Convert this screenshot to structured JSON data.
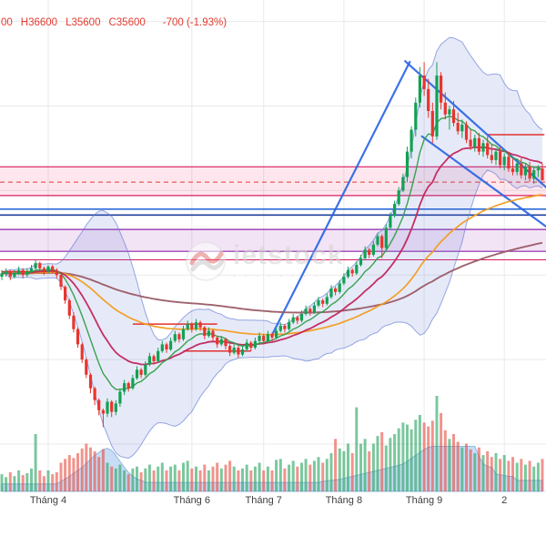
{
  "legend": {
    "open_partial": "00",
    "high": "H36600",
    "low": "L35600",
    "close": "C35600",
    "change": "-700 (-1.93%)"
  },
  "watermark": {
    "text": "ietstock",
    "dots": "· · · · · · · ·"
  },
  "colors": {
    "up": "#12a152",
    "down": "#e7352d",
    "vol_up": "#23a45d",
    "vol_down": "#e64c41",
    "bb_fill": "rgba(99,122,214,0.16)",
    "bb_edge": "#637ad6",
    "flow_fill": "#8fbcec",
    "flow_edge": "#6ea3d8",
    "trend": "#2763e4",
    "red_seg": "#e03131",
    "grid": "#e9e9e9",
    "axis_text": "#3f3f3f",
    "legend_text": "#e23b30"
  },
  "chart_data": {
    "type": "candlestick",
    "title": "",
    "ylim": [
      17200,
      46270
    ],
    "x_axis": {
      "labels": [
        {
          "label": "Tháng 4",
          "bar": 11
        },
        {
          "label": "Tháng 6",
          "bar": 45
        },
        {
          "label": "Tháng 7",
          "bar": 62
        },
        {
          "label": "Tháng 8",
          "bar": 81
        },
        {
          "label": "Tháng 9",
          "bar": 100
        },
        {
          "label": "2",
          "bar": 119
        }
      ]
    },
    "candles": [
      [
        29900,
        30300,
        29700,
        30100
      ],
      [
        30100,
        30400,
        29900,
        30200
      ],
      [
        30200,
        30300,
        29700,
        29900
      ],
      [
        29900,
        30300,
        29800,
        30100
      ],
      [
        30100,
        30500,
        30000,
        30300
      ],
      [
        30300,
        30400,
        29800,
        30000
      ],
      [
        30000,
        30400,
        29900,
        30200
      ],
      [
        30200,
        30600,
        30100,
        30400
      ],
      [
        30400,
        30900,
        30300,
        30700
      ],
      [
        30700,
        30800,
        30200,
        30400
      ],
      [
        30400,
        30500,
        30000,
        30200
      ],
      [
        30200,
        30600,
        30100,
        30500
      ],
      [
        30500,
        30600,
        30100,
        30300
      ],
      [
        30300,
        30400,
        29800,
        30000
      ],
      [
        30000,
        30100,
        29100,
        29300
      ],
      [
        29300,
        29400,
        28300,
        28500
      ],
      [
        28500,
        28600,
        27400,
        27600
      ],
      [
        27600,
        27800,
        26600,
        26800
      ],
      [
        26800,
        26900,
        25700,
        25900
      ],
      [
        25900,
        26000,
        24800,
        25000
      ],
      [
        25000,
        25100,
        23900,
        24100
      ],
      [
        24100,
        24200,
        23000,
        23300
      ],
      [
        23300,
        23400,
        22300,
        22600
      ],
      [
        22600,
        22700,
        21700,
        22000
      ],
      [
        22000,
        22100,
        21000,
        21800
      ],
      [
        21800,
        22700,
        21600,
        22500
      ],
      [
        22500,
        22600,
        21600,
        21900
      ],
      [
        21900,
        22600,
        21700,
        22400
      ],
      [
        22400,
        23300,
        22200,
        23100
      ],
      [
        23100,
        23800,
        22900,
        23600
      ],
      [
        23600,
        23700,
        23100,
        23300
      ],
      [
        23300,
        24100,
        23200,
        23900
      ],
      [
        23900,
        24600,
        23800,
        24400
      ],
      [
        24400,
        24500,
        23900,
        24100
      ],
      [
        24100,
        24900,
        24000,
        24700
      ],
      [
        24700,
        25400,
        24600,
        25200
      ],
      [
        25200,
        25300,
        24700,
        24900
      ],
      [
        24900,
        25700,
        24800,
        25500
      ],
      [
        25500,
        26100,
        25400,
        25900
      ],
      [
        25900,
        26000,
        25400,
        25600
      ],
      [
        25600,
        26300,
        25500,
        26100
      ],
      [
        26100,
        26700,
        26000,
        26500
      ],
      [
        26500,
        26600,
        26000,
        26200
      ],
      [
        26200,
        27000,
        26100,
        26800
      ],
      [
        26800,
        27300,
        26700,
        27100
      ],
      [
        27100,
        27200,
        26600,
        26800
      ],
      [
        26800,
        27400,
        26700,
        27200
      ],
      [
        27200,
        27300,
        26700,
        26900
      ],
      [
        26900,
        27000,
        26200,
        26400
      ],
      [
        26400,
        26900,
        26300,
        26700
      ],
      [
        26700,
        26800,
        26100,
        26300
      ],
      [
        26300,
        26400,
        25700,
        25900
      ],
      [
        25900,
        26400,
        25800,
        26200
      ],
      [
        26200,
        26300,
        25600,
        25800
      ],
      [
        25800,
        25900,
        25200,
        25400
      ],
      [
        25400,
        25900,
        25300,
        25700
      ],
      [
        25700,
        25800,
        25100,
        25300
      ],
      [
        25300,
        25800,
        25200,
        25600
      ],
      [
        25600,
        26200,
        25500,
        26000
      ],
      [
        26000,
        26100,
        25500,
        25700
      ],
      [
        25700,
        26300,
        25600,
        26100
      ],
      [
        26100,
        26600,
        26000,
        26400
      ],
      [
        26400,
        26500,
        25900,
        26100
      ],
      [
        26100,
        26700,
        26000,
        26500
      ],
      [
        26500,
        26600,
        26100,
        26300
      ],
      [
        26300,
        26900,
        26200,
        26700
      ],
      [
        26700,
        27200,
        26600,
        27000
      ],
      [
        27000,
        27100,
        26600,
        26800
      ],
      [
        26800,
        27400,
        26700,
        27200
      ],
      [
        27200,
        27700,
        27100,
        27500
      ],
      [
        27500,
        27600,
        27100,
        27300
      ],
      [
        27300,
        27900,
        27200,
        27700
      ],
      [
        27700,
        28200,
        27600,
        28000
      ],
      [
        28000,
        28100,
        27600,
        27800
      ],
      [
        27800,
        28400,
        27700,
        28200
      ],
      [
        28200,
        28700,
        28100,
        28500
      ],
      [
        28500,
        28600,
        28100,
        28300
      ],
      [
        28300,
        28900,
        28200,
        28700
      ],
      [
        28700,
        29400,
        28600,
        29200
      ],
      [
        29200,
        29300,
        28800,
        29000
      ],
      [
        29000,
        29700,
        28900,
        29500
      ],
      [
        29500,
        30100,
        29400,
        29900
      ],
      [
        29900,
        30500,
        29800,
        30300
      ],
      [
        30300,
        30400,
        29900,
        30100
      ],
      [
        30100,
        30800,
        30000,
        30600
      ],
      [
        30600,
        31200,
        30500,
        31000
      ],
      [
        31000,
        31700,
        30900,
        31500
      ],
      [
        31500,
        31600,
        31000,
        31200
      ],
      [
        31200,
        32000,
        31100,
        31800
      ],
      [
        31800,
        32500,
        31700,
        32300
      ],
      [
        32300,
        32400,
        31000,
        31600
      ],
      [
        31600,
        33000,
        31500,
        32800
      ],
      [
        32800,
        33700,
        32700,
        33500
      ],
      [
        33500,
        34400,
        33400,
        34200
      ],
      [
        34200,
        35200,
        34100,
        35000
      ],
      [
        35000,
        36000,
        34900,
        35800
      ],
      [
        35800,
        37600,
        35500,
        37300
      ],
      [
        37300,
        38800,
        36900,
        38600
      ],
      [
        38600,
        40500,
        38200,
        40200
      ],
      [
        40200,
        42300,
        39900,
        41800
      ],
      [
        41800,
        42600,
        40600,
        41000
      ],
      [
        41000,
        41600,
        39300,
        39700
      ],
      [
        39700,
        40200,
        37800,
        38200
      ],
      [
        38200,
        42600,
        38000,
        41800
      ],
      [
        41800,
        42000,
        39800,
        40200
      ],
      [
        40200,
        40800,
        39200,
        39500
      ],
      [
        39500,
        40000,
        38600,
        39800
      ],
      [
        39800,
        40300,
        38800,
        39000
      ],
      [
        39000,
        39600,
        38300,
        38500
      ],
      [
        38500,
        39200,
        38100,
        38900
      ],
      [
        38900,
        39100,
        37800,
        38000
      ],
      [
        38000,
        38600,
        37400,
        37600
      ],
      [
        37600,
        38300,
        37300,
        38100
      ],
      [
        38100,
        38400,
        37100,
        37300
      ],
      [
        37300,
        38000,
        37000,
        37800
      ],
      [
        37800,
        38200,
        36900,
        37100
      ],
      [
        37100,
        37700,
        36600,
        36800
      ],
      [
        36800,
        37500,
        36500,
        37300
      ],
      [
        37300,
        37600,
        36300,
        36500
      ],
      [
        36500,
        37200,
        36200,
        37000
      ],
      [
        37000,
        37300,
        36100,
        36300
      ],
      [
        36300,
        36900,
        35900,
        36100
      ],
      [
        36100,
        36800,
        35900,
        36600
      ],
      [
        36600,
        36900,
        35700,
        35900
      ],
      [
        35900,
        36600,
        35600,
        36400
      ],
      [
        36400,
        36700,
        35500,
        35700
      ],
      [
        35700,
        36400,
        35400,
        36200
      ],
      [
        36200,
        36500,
        35800,
        36300
      ],
      [
        36300,
        36600,
        35600,
        35600
      ]
    ],
    "volume": [
      0.18,
      0.15,
      0.2,
      0.16,
      0.22,
      0.17,
      0.19,
      0.24,
      0.6,
      0.22,
      0.16,
      0.22,
      0.18,
      0.2,
      0.3,
      0.34,
      0.38,
      0.35,
      0.4,
      0.45,
      0.5,
      0.46,
      0.42,
      0.36,
      0.44,
      0.3,
      0.26,
      0.24,
      0.28,
      0.22,
      0.18,
      0.24,
      0.26,
      0.2,
      0.24,
      0.28,
      0.22,
      0.26,
      0.3,
      0.22,
      0.26,
      0.28,
      0.22,
      0.3,
      0.32,
      0.24,
      0.26,
      0.22,
      0.28,
      0.22,
      0.26,
      0.3,
      0.24,
      0.28,
      0.32,
      0.26,
      0.22,
      0.24,
      0.28,
      0.22,
      0.26,
      0.3,
      0.22,
      0.26,
      0.22,
      0.33,
      0.34,
      0.24,
      0.28,
      0.32,
      0.26,
      0.3,
      0.34,
      0.28,
      0.32,
      0.36,
      0.3,
      0.34,
      0.4,
      0.55,
      0.45,
      0.42,
      0.5,
      0.4,
      0.88,
      0.5,
      0.55,
      0.42,
      0.5,
      0.58,
      0.62,
      0.48,
      0.56,
      0.6,
      0.66,
      0.72,
      0.7,
      0.65,
      0.75,
      0.8,
      0.72,
      0.68,
      0.74,
      1.0,
      0.82,
      0.64,
      0.55,
      0.6,
      0.52,
      0.46,
      0.5,
      0.44,
      0.4,
      0.46,
      0.38,
      0.42,
      0.36,
      0.4,
      0.34,
      0.38,
      0.32,
      0.36,
      0.3,
      0.34,
      0.28,
      0.32,
      0.26,
      0.3,
      0.34
    ],
    "flow_area": [
      0.15,
      0.15,
      0.15,
      0.15,
      0.15,
      0.15,
      0.15,
      0.15,
      0.15,
      0.15,
      0.15,
      0.15,
      0.15,
      0.15,
      0.2,
      0.25,
      0.3,
      0.36,
      0.42,
      0.48,
      0.56,
      0.64,
      0.72,
      0.78,
      0.84,
      0.86,
      0.82,
      0.72,
      0.6,
      0.48,
      0.38,
      0.3,
      0.25,
      0.22,
      0.18,
      0.18,
      0.18,
      0.18,
      0.18,
      0.18,
      0.18,
      0.18,
      0.18,
      0.18,
      0.18,
      0.18,
      0.18,
      0.18,
      0.18,
      0.18,
      0.18,
      0.18,
      0.18,
      0.18,
      0.18,
      0.18,
      0.18,
      0.18,
      0.18,
      0.18,
      0.18,
      0.18,
      0.18,
      0.18,
      0.18,
      0.18,
      0.18,
      0.18,
      0.18,
      0.18,
      0.18,
      0.18,
      0.18,
      0.18,
      0.18,
      0.18,
      0.2,
      0.21,
      0.22,
      0.23,
      0.24,
      0.26,
      0.28,
      0.3,
      0.32,
      0.34,
      0.36,
      0.38,
      0.4,
      0.42,
      0.44,
      0.46,
      0.48,
      0.5,
      0.52,
      0.55,
      0.6,
      0.66,
      0.72,
      0.78,
      0.84,
      0.88,
      0.9,
      0.9,
      0.9,
      0.9,
      0.9,
      0.9,
      0.9,
      0.9,
      0.9,
      0.9,
      0.9,
      0.7,
      0.55,
      0.5,
      0.48,
      0.35,
      0.33,
      0.32,
      0.3,
      0.3,
      0.22,
      0.22,
      0.22,
      0.22,
      0.22,
      0.22,
      0.22
    ],
    "indicators": {
      "bollinger": {
        "period": 20,
        "mult": 2
      },
      "emas": [
        {
          "period": 150,
          "color": "#9a5b66",
          "width": 1.9
        },
        {
          "period": 60,
          "color": "#f29b1d",
          "width": 1.7
        },
        {
          "period": 21,
          "color": "#c2255c",
          "width": 1.8
        },
        {
          "period": 9,
          "color": "#2f9e44",
          "width": 1.4
        }
      ]
    },
    "overlays": {
      "gridlines": [
        45000,
        40000,
        35000,
        30000,
        25000,
        20000
      ],
      "zones": [
        {
          "top": 36400,
          "bottom": 34700,
          "fill": "rgba(236,64,122,0.13)",
          "border": "#d81b60"
        },
        {
          "top": 32700,
          "bottom": 31400,
          "fill": "rgba(171,71,188,0.15)",
          "border": "#8e24aa"
        }
      ],
      "hlines": [
        {
          "price": 35500,
          "color": "#e53935",
          "width": 1,
          "dash": true
        },
        {
          "price": 33900,
          "color": "#2b6bd7",
          "width": 1.6,
          "dash": false
        },
        {
          "price": 33550,
          "color": "#1f3f9c",
          "width": 1.6,
          "dash": false
        },
        {
          "price": 30900,
          "color": "#d81b60",
          "width": 1,
          "dash": false
        }
      ],
      "segments": [
        {
          "b1": 0,
          "b2": 13,
          "price": 30200
        },
        {
          "b1": 31,
          "b2": 51,
          "price": 27100
        },
        {
          "b1": 43,
          "b2": 59,
          "price": 25500
        },
        {
          "b1": 115,
          "b2": 128.5,
          "price": 38300
        }
      ],
      "trendlines": [
        {
          "b1": 64,
          "p1": 26460,
          "b2": 96.6,
          "p2": 42610
        },
        {
          "b1": 95.5,
          "p1": 42650,
          "b2": 129.5,
          "p2": 35050
        },
        {
          "b1": 99.5,
          "p1": 38200,
          "b2": 129.5,
          "p2": 32750
        }
      ]
    }
  }
}
